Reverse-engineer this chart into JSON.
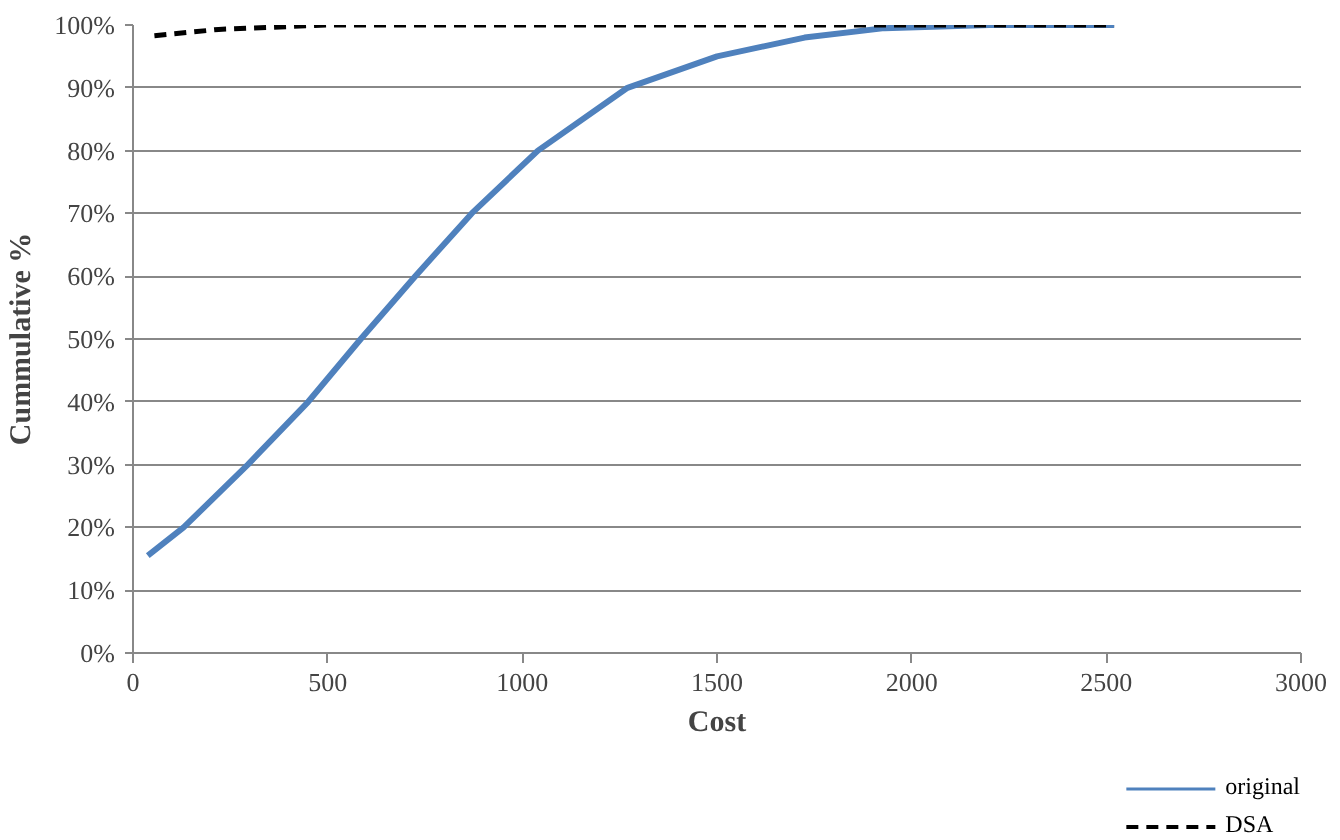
{
  "chart_data": {
    "type": "line",
    "xlabel": "Cost",
    "ylabel": "Cummulative %",
    "xlim": [
      0,
      3000
    ],
    "xticks": [
      0,
      500,
      1000,
      1500,
      2000,
      2500,
      3000
    ],
    "ylim": [
      0,
      100
    ],
    "yticks": [
      {
        "value": 0,
        "label": "0%"
      },
      {
        "value": 10,
        "label": "10%"
      },
      {
        "value": 20,
        "label": "20%"
      },
      {
        "value": 30,
        "label": "30%"
      },
      {
        "value": 40,
        "label": "40%"
      },
      {
        "value": 50,
        "label": "50%"
      },
      {
        "value": 60,
        "label": "60%"
      },
      {
        "value": 70,
        "label": "70%"
      },
      {
        "value": 80,
        "label": "80%"
      },
      {
        "value": 90,
        "label": "90%"
      },
      {
        "value": 100,
        "label": "100%"
      }
    ],
    "grid": "y",
    "legend": "bottom right",
    "series": [
      {
        "name": "original",
        "color": "#4f81bd",
        "line_style": "solid",
        "x": [
          38,
          130,
          295,
          450,
          585,
          725,
          870,
          1040,
          1270,
          1500,
          1725,
          1930,
          2200,
          2520
        ],
        "values": [
          15.5,
          20,
          30,
          40,
          50,
          60,
          70,
          80,
          90,
          95,
          98,
          99.5,
          100,
          100
        ]
      },
      {
        "name": "DSA",
        "color": "#000000",
        "line_style": "dashed",
        "x": [
          55,
          220,
          500,
          1000,
          1500,
          2000,
          2520
        ],
        "values": [
          98.3,
          99.3,
          100,
          100,
          100,
          100,
          100
        ]
      }
    ]
  }
}
